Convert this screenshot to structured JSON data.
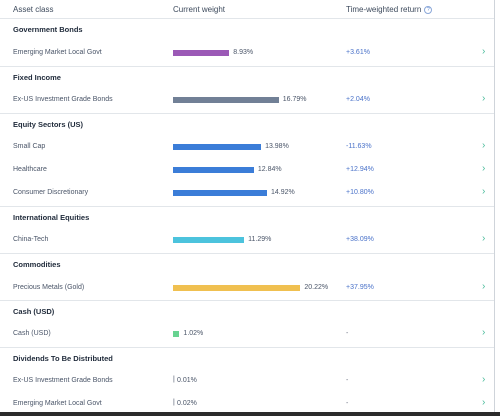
{
  "header": {
    "asset_class": "Asset class",
    "current_weight": "Current weight",
    "time_weighted_return": "Time-weighted return",
    "info_icon": "?"
  },
  "colors": {
    "purple": "#9b59b6",
    "slate": "#718096",
    "blue": "#3b7dd8",
    "cyan": "#4cc3dd",
    "gold": "#f0c050",
    "green": "#68d391",
    "return_text": "#4a72c9",
    "chevron": "#48bb9a"
  },
  "categories": [
    {
      "title": "Government Bonds",
      "rows": [
        {
          "name": "Emerging Market Local Govt",
          "weight": "8.93%",
          "weight_value": 8.93,
          "return": "+3.61%",
          "color": "#9b59b6"
        }
      ]
    },
    {
      "title": "Fixed Income",
      "rows": [
        {
          "name": "Ex-US Investment Grade Bonds",
          "weight": "16.79%",
          "weight_value": 16.79,
          "return": "+2.04%",
          "color": "#718096"
        }
      ]
    },
    {
      "title": "Equity Sectors (US)",
      "rows": [
        {
          "name": "Small Cap",
          "weight": "13.98%",
          "weight_value": 13.98,
          "return": "-11.63%",
          "color": "#3b7dd8"
        },
        {
          "name": "Healthcare",
          "weight": "12.84%",
          "weight_value": 12.84,
          "return": "+12.94%",
          "color": "#3b7dd8"
        },
        {
          "name": "Consumer Discretionary",
          "weight": "14.92%",
          "weight_value": 14.92,
          "return": "+10.80%",
          "color": "#3b7dd8"
        }
      ]
    },
    {
      "title": "International Equities",
      "rows": [
        {
          "name": "China-Tech",
          "weight": "11.29%",
          "weight_value": 11.29,
          "return": "+38.09%",
          "color": "#4cc3dd"
        }
      ]
    },
    {
      "title": "Commodities",
      "rows": [
        {
          "name": "Precious Metals (Gold)",
          "weight": "20.22%",
          "weight_value": 20.22,
          "return": "+37.95%",
          "color": "#f0c050"
        }
      ]
    },
    {
      "title": "Cash (USD)",
      "rows": [
        {
          "name": "Cash (USD)",
          "weight": "1.02%",
          "weight_value": 1.02,
          "return": "-",
          "color": "#68d391"
        }
      ]
    },
    {
      "title": "Dividends To Be Distributed",
      "rows": [
        {
          "name": "Ex-US Investment Grade Bonds",
          "weight": "0.01%",
          "weight_value": 0.01,
          "return": "-",
          "color": "#4a5568"
        },
        {
          "name": "Emerging Market Local Govt",
          "weight": "0.02%",
          "weight_value": 0.02,
          "return": "-",
          "color": "#4a5568"
        }
      ]
    }
  ],
  "chevron_glyph": "›",
  "pipe_glyph": "|"
}
